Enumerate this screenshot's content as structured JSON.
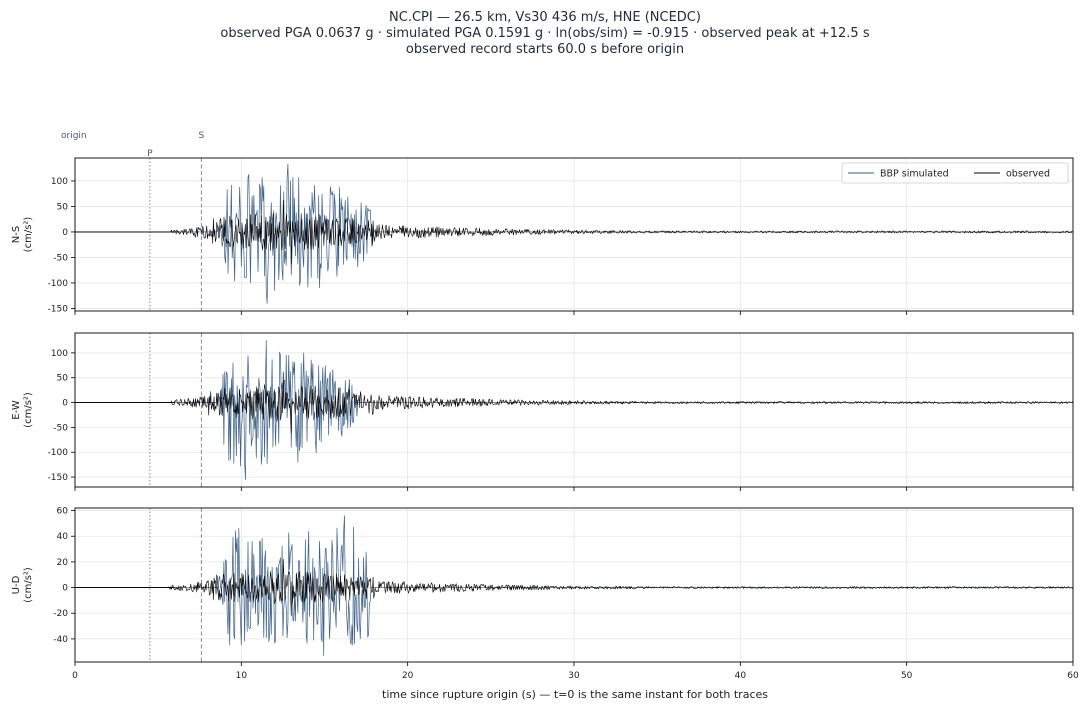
{
  "chart_data": {
    "type": "line",
    "title_lines": [
      "NC.CPI  —  26.5 km, Vs30 436 m/s, HNE (NCEDC)",
      "observed PGA 0.0637 g   ·   simulated PGA 0.1591 g   ·   ln(obs/sim) = -0.915   ·   observed peak at +12.5 s",
      "observed record starts 60.0 s before origin"
    ],
    "xlabel": "time since rupture origin (s)   —   t=0 is the same instant for both traces",
    "xlim": [
      0,
      60
    ],
    "xticks": [
      0,
      10,
      20,
      30,
      40,
      50,
      60
    ],
    "grid": true,
    "legend": {
      "placement": "top-right",
      "entries": [
        {
          "label": "BBP simulated",
          "color": "#3d5f86"
        },
        {
          "label": "observed",
          "color": "#000000"
        }
      ]
    },
    "markers": [
      {
        "label": "origin",
        "t": 0
      },
      {
        "label": "P",
        "t": 4.5,
        "style": "dotted"
      },
      {
        "label": "S",
        "t": 7.6,
        "style": "dashed"
      }
    ],
    "panels": [
      {
        "component": "N-S",
        "ylabel_line1": "N-S",
        "ylabel_line2": "(cm/s²)",
        "ylim": [
          -155,
          145
        ],
        "yticks": [
          -150,
          -100,
          -50,
          0,
          50,
          100
        ],
        "series": [
          {
            "name": "BBP simulated",
            "start": 8.5,
            "end": 18.0,
            "peak_t": 12.8,
            "max": 133,
            "min": -140
          },
          {
            "name": "observed",
            "start": 5.8,
            "end": 60.0,
            "peak_t": 12.5,
            "max": 62,
            "min": -62
          }
        ]
      },
      {
        "component": "E-W",
        "ylabel_line1": "E-W",
        "ylabel_line2": "(cm/s²)",
        "ylim": [
          -170,
          140
        ],
        "yticks": [
          -150,
          -100,
          -50,
          0,
          50,
          100
        ],
        "series": [
          {
            "name": "BBP simulated",
            "start": 8.5,
            "end": 17.0,
            "peak_t": 11.5,
            "max": 125,
            "min": -155
          },
          {
            "name": "observed",
            "start": 5.8,
            "end": 60.0,
            "peak_t": 12.5,
            "max": 62,
            "min": -62
          }
        ]
      },
      {
        "component": "U-D",
        "ylabel_line1": "U-D",
        "ylabel_line2": "(cm/s²)",
        "ylim": [
          -58,
          62
        ],
        "yticks": [
          -40,
          -20,
          0,
          20,
          40,
          60
        ],
        "series": [
          {
            "name": "BBP simulated",
            "start": 8.5,
            "end": 17.8,
            "peak_t": 16.2,
            "max": 56,
            "min": -53
          },
          {
            "name": "observed",
            "start": 5.6,
            "end": 60.0,
            "peak_t": 12.5,
            "max": 22,
            "min": -22
          }
        ]
      }
    ]
  }
}
